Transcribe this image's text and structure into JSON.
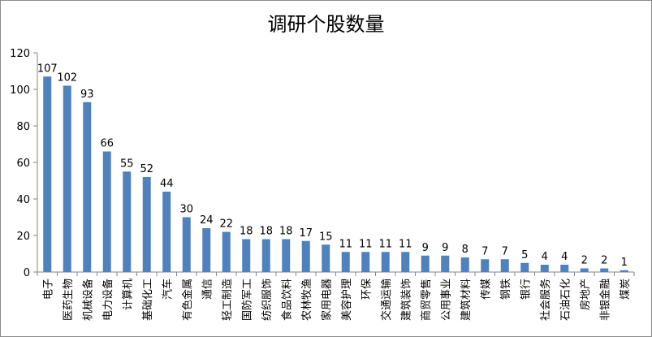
{
  "chart_data": {
    "type": "bar",
    "title": "调研个股数量",
    "xlabel": "",
    "ylabel": "",
    "ylim": [
      0,
      120
    ],
    "yticks": [
      0,
      20,
      40,
      60,
      80,
      100,
      120
    ],
    "grid": false,
    "legend": "none",
    "bar_color": "#4F81BD",
    "categories": [
      "电子",
      "医药生物",
      "机械设备",
      "电力设备",
      "计算机",
      "基础化工",
      "汽车",
      "有色金属",
      "通信",
      "轻工制造",
      "国防军工",
      "纺织服饰",
      "食品饮料",
      "农林牧渔",
      "家用电器",
      "美容护理",
      "环保",
      "交通运输",
      "建筑装饰",
      "商贸零售",
      "公用事业",
      "建筑材料",
      "传媒",
      "钢铁",
      "银行",
      "社会服务",
      "石油石化",
      "房地产",
      "非银金融",
      "煤炭"
    ],
    "values": [
      107,
      102,
      93,
      66,
      55,
      52,
      44,
      30,
      24,
      22,
      18,
      18,
      18,
      17,
      15,
      11,
      11,
      11,
      11,
      9,
      9,
      8,
      7,
      7,
      5,
      4,
      4,
      2,
      2,
      1
    ]
  }
}
